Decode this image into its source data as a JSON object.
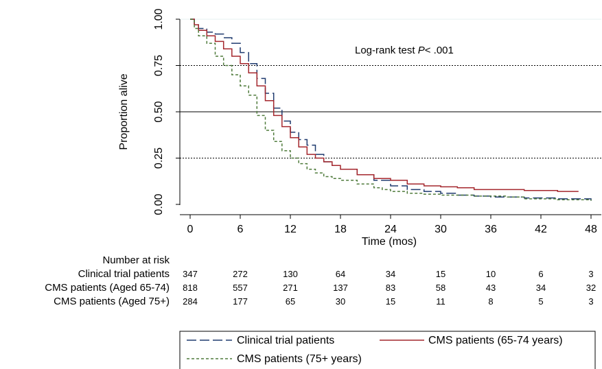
{
  "chart_data": {
    "type": "line",
    "xlabel": "Time (mos)",
    "ylabel": "Proportion alive",
    "xlim": [
      0,
      48
    ],
    "ylim": [
      0,
      1
    ],
    "x_ticks": [
      "0",
      "6",
      "12",
      "18",
      "24",
      "30",
      "36",
      "42",
      "48"
    ],
    "y_ticks": [
      "0.00",
      "0.25",
      "0.50",
      "0.75",
      "1.00"
    ],
    "annotation": {
      "prefix": "Log-rank test ",
      "italic": "P",
      "suffix": "< .001"
    },
    "reference_lines": [
      {
        "y": 0.75,
        "style": "dotted"
      },
      {
        "y": 0.5,
        "style": "solid"
      },
      {
        "y": 0.25,
        "style": "dotted"
      }
    ],
    "series": [
      {
        "name": "Clinical trial patients",
        "color": "#1f3a6e",
        "dash": "long-dash",
        "points": [
          [
            0,
            1
          ],
          [
            0.5,
            0.97
          ],
          [
            1,
            0.95
          ],
          [
            2,
            0.93
          ],
          [
            3,
            0.92
          ],
          [
            4,
            0.9
          ],
          [
            5,
            0.87
          ],
          [
            6,
            0.82
          ],
          [
            7,
            0.76
          ],
          [
            8,
            0.68
          ],
          [
            9,
            0.6
          ],
          [
            10,
            0.52
          ],
          [
            11,
            0.45
          ],
          [
            12,
            0.39
          ],
          [
            13,
            0.35
          ],
          [
            14,
            0.32
          ],
          [
            15,
            0.27
          ],
          [
            16,
            0.23
          ],
          [
            17,
            0.21
          ],
          [
            18,
            0.19
          ],
          [
            20,
            0.16
          ],
          [
            22,
            0.13
          ],
          [
            24,
            0.1
          ],
          [
            26,
            0.08
          ],
          [
            28,
            0.07
          ],
          [
            30,
            0.06
          ],
          [
            32,
            0.05
          ],
          [
            34,
            0.045
          ],
          [
            36,
            0.04
          ],
          [
            40,
            0.035
          ],
          [
            44,
            0.03
          ],
          [
            48,
            0.02
          ]
        ]
      },
      {
        "name": "CMS patients (65-74 years)",
        "color": "#a4262c",
        "dash": "solid",
        "points": [
          [
            0,
            1
          ],
          [
            0.5,
            0.97
          ],
          [
            1,
            0.94
          ],
          [
            2,
            0.91
          ],
          [
            3,
            0.88
          ],
          [
            4,
            0.84
          ],
          [
            5,
            0.8
          ],
          [
            6,
            0.76
          ],
          [
            7,
            0.71
          ],
          [
            8,
            0.64
          ],
          [
            9,
            0.56
          ],
          [
            10,
            0.48
          ],
          [
            11,
            0.42
          ],
          [
            12,
            0.36
          ],
          [
            13,
            0.31
          ],
          [
            14,
            0.27
          ],
          [
            15,
            0.25
          ],
          [
            16,
            0.23
          ],
          [
            17,
            0.21
          ],
          [
            18,
            0.19
          ],
          [
            20,
            0.16
          ],
          [
            22,
            0.14
          ],
          [
            24,
            0.13
          ],
          [
            26,
            0.11
          ],
          [
            28,
            0.1
          ],
          [
            30,
            0.095
          ],
          [
            32,
            0.09
          ],
          [
            34,
            0.08
          ],
          [
            36,
            0.08
          ],
          [
            40,
            0.075
          ],
          [
            44,
            0.07
          ],
          [
            46.5,
            0.07
          ]
        ]
      },
      {
        "name": "CMS patients (75+ years)",
        "color": "#4e7a3a",
        "dash": "short-dash",
        "points": [
          [
            0,
            1
          ],
          [
            0.5,
            0.95
          ],
          [
            1,
            0.91
          ],
          [
            2,
            0.87
          ],
          [
            3,
            0.8
          ],
          [
            4,
            0.75
          ],
          [
            5,
            0.7
          ],
          [
            6,
            0.64
          ],
          [
            7,
            0.59
          ],
          [
            8,
            0.48
          ],
          [
            9,
            0.4
          ],
          [
            10,
            0.34
          ],
          [
            11,
            0.29
          ],
          [
            12,
            0.25
          ],
          [
            13,
            0.22
          ],
          [
            14,
            0.19
          ],
          [
            15,
            0.17
          ],
          [
            16,
            0.15
          ],
          [
            17,
            0.14
          ],
          [
            18,
            0.13
          ],
          [
            20,
            0.11
          ],
          [
            22,
            0.09
          ],
          [
            23,
            0.08
          ],
          [
            24,
            0.07
          ],
          [
            26,
            0.06
          ],
          [
            28,
            0.055
          ],
          [
            30,
            0.05
          ],
          [
            34,
            0.045
          ],
          [
            38,
            0.04
          ],
          [
            40,
            0.03
          ],
          [
            44,
            0.025
          ],
          [
            48,
            0.02
          ]
        ]
      }
    ],
    "risk_table": {
      "header": "Number at risk",
      "rows": [
        {
          "label": "Clinical trial patients",
          "values": [
            "347",
            "272",
            "130",
            "64",
            "34",
            "15",
            "10",
            "6",
            "3"
          ]
        },
        {
          "label": "CMS patients (Aged 65-74)",
          "values": [
            "818",
            "557",
            "271",
            "137",
            "83",
            "58",
            "43",
            "34",
            "32"
          ]
        },
        {
          "label": "CMS patients (Aged 75+)",
          "values": [
            "284",
            "177",
            "65",
            "30",
            "15",
            "11",
            "8",
            "5",
            "3"
          ]
        }
      ]
    },
    "legend": {
      "placement": "bottom",
      "entries": [
        {
          "label": "Clinical trial patients",
          "color": "#1f3a6e",
          "dash": "long-dash"
        },
        {
          "label": "CMS patients (65-74 years)",
          "color": "#a4262c",
          "dash": "solid"
        },
        {
          "label": "CMS patients (75+ years)",
          "color": "#4e7a3a",
          "dash": "short-dash"
        }
      ]
    }
  }
}
